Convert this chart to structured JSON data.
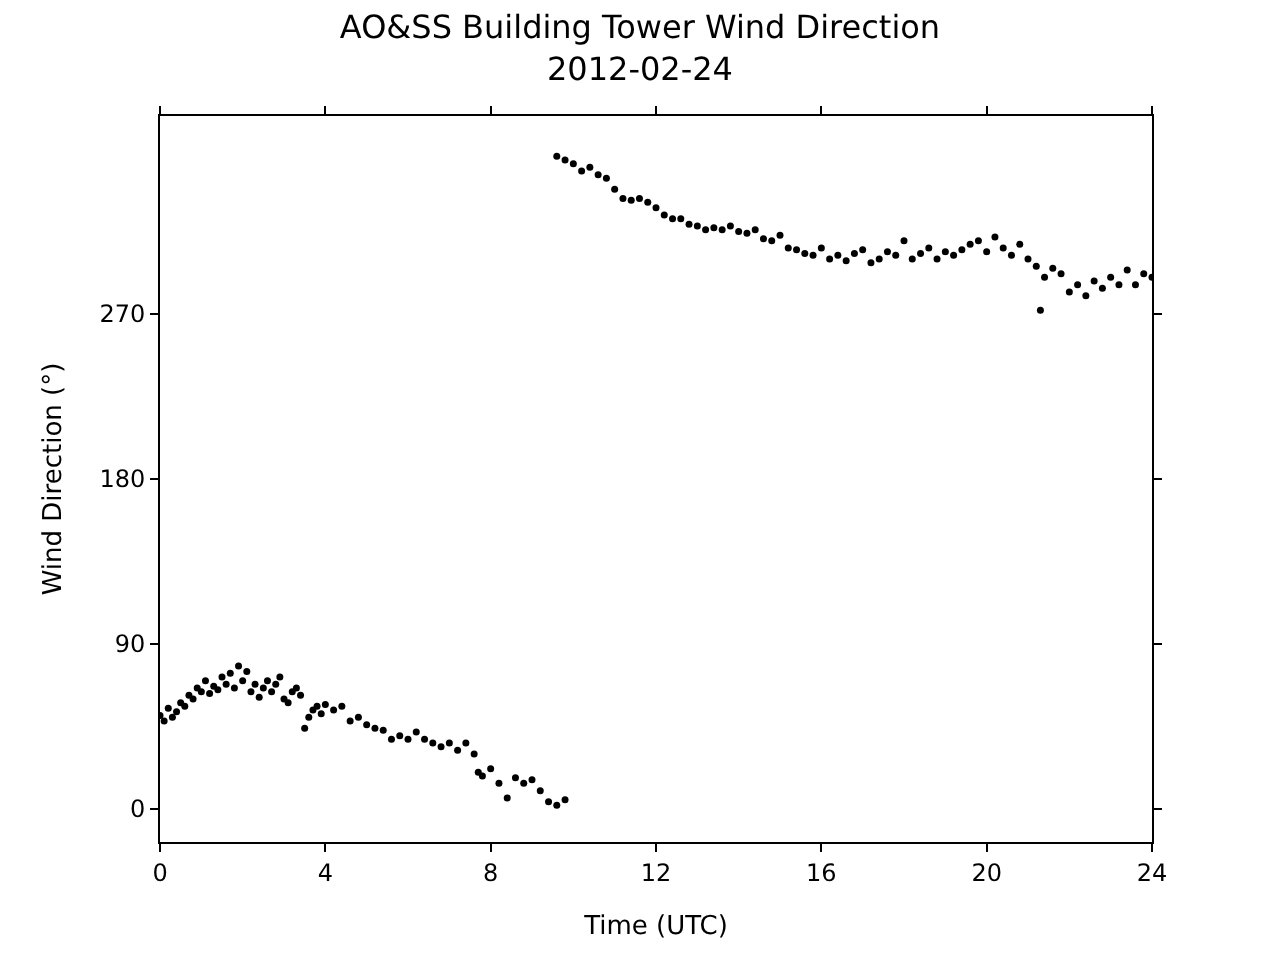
{
  "chart_data": {
    "type": "scatter",
    "title": "AO&SS Building Tower Wind Direction",
    "subtitle": "2012-02-24",
    "xlabel": "Time (UTC)",
    "ylabel": "Wind Direction (°)",
    "xlim": [
      0,
      24
    ],
    "xticks": [
      0,
      4,
      8,
      12,
      16,
      20,
      24
    ],
    "ylim": [
      -18,
      378
    ],
    "yticks": [
      0,
      90,
      180,
      270
    ],
    "marker": "circle",
    "series": [
      {
        "color": "#000000",
        "x": [
          0,
          0.1,
          0.2,
          0.3,
          0.4,
          0.5,
          0.6,
          0.7,
          0.8,
          0.9,
          1.0,
          1.1,
          1.2,
          1.3,
          1.4,
          1.5,
          1.6,
          1.7,
          1.8,
          1.9,
          2.0,
          2.1,
          2.2,
          2.3,
          2.4,
          2.5,
          2.6,
          2.7,
          2.8,
          2.9,
          3.0,
          3.1,
          3.2,
          3.3,
          3.4,
          3.5,
          3.6,
          3.7,
          3.8,
          3.9,
          4.0,
          4.2,
          4.4,
          4.6,
          4.8,
          5.0,
          5.2,
          5.4,
          5.6,
          5.8,
          6.0,
          6.2,
          6.4,
          6.6,
          6.8,
          7.0,
          7.2,
          7.4,
          7.6,
          7.7,
          7.8,
          8.0,
          8.2,
          8.4,
          8.6,
          8.8,
          9.0,
          9.2,
          9.4,
          9.6,
          9.8,
          9.6,
          9.8,
          10.0,
          10.2,
          10.4,
          10.6,
          10.8,
          11.0,
          11.2,
          11.4,
          11.6,
          11.8,
          12.0,
          12.2,
          12.4,
          12.6,
          12.8,
          13.0,
          13.2,
          13.4,
          13.6,
          13.8,
          14.0,
          14.2,
          14.4,
          14.6,
          14.8,
          15.0,
          15.2,
          15.4,
          15.6,
          15.8,
          16.0,
          16.2,
          16.4,
          16.6,
          16.8,
          17.0,
          17.2,
          17.4,
          17.6,
          17.8,
          18.0,
          18.2,
          18.4,
          18.6,
          18.8,
          19.0,
          19.2,
          19.4,
          19.6,
          19.8,
          20.0,
          20.2,
          20.4,
          20.6,
          20.8,
          21.0,
          21.2,
          21.3,
          21.4,
          21.6,
          21.8,
          22.0,
          22.2,
          22.4,
          22.6,
          22.8,
          23.0,
          23.2,
          23.4,
          23.6,
          23.8,
          24.0
        ],
        "values": [
          51,
          48,
          55,
          50,
          53,
          58,
          56,
          62,
          60,
          66,
          64,
          70,
          63,
          67,
          65,
          72,
          68,
          74,
          66,
          78,
          70,
          75,
          64,
          68,
          61,
          66,
          70,
          64,
          68,
          72,
          60,
          58,
          64,
          66,
          62,
          44,
          50,
          54,
          56,
          52,
          57,
          54,
          56,
          48,
          50,
          46,
          44,
          43,
          38,
          40,
          38,
          42,
          38,
          36,
          34,
          36,
          32,
          36,
          30,
          20,
          18,
          22,
          14,
          6,
          17,
          14,
          16,
          10,
          4,
          2,
          5,
          356,
          354,
          352,
          348,
          350,
          346,
          344,
          338,
          333,
          332,
          333,
          331,
          328,
          324,
          322,
          322,
          319,
          318,
          316,
          317,
          316,
          318,
          315,
          314,
          316,
          311,
          310,
          313,
          306,
          305,
          303,
          302,
          306,
          300,
          302,
          299,
          303,
          305,
          298,
          300,
          304,
          302,
          310,
          300,
          303,
          306,
          300,
          304,
          302,
          305,
          308,
          310,
          304,
          312,
          306,
          302,
          308,
          300,
          296,
          272,
          290,
          295,
          292,
          282,
          286,
          280,
          288,
          284,
          290,
          286,
          294,
          286,
          292,
          290
        ]
      }
    ]
  }
}
